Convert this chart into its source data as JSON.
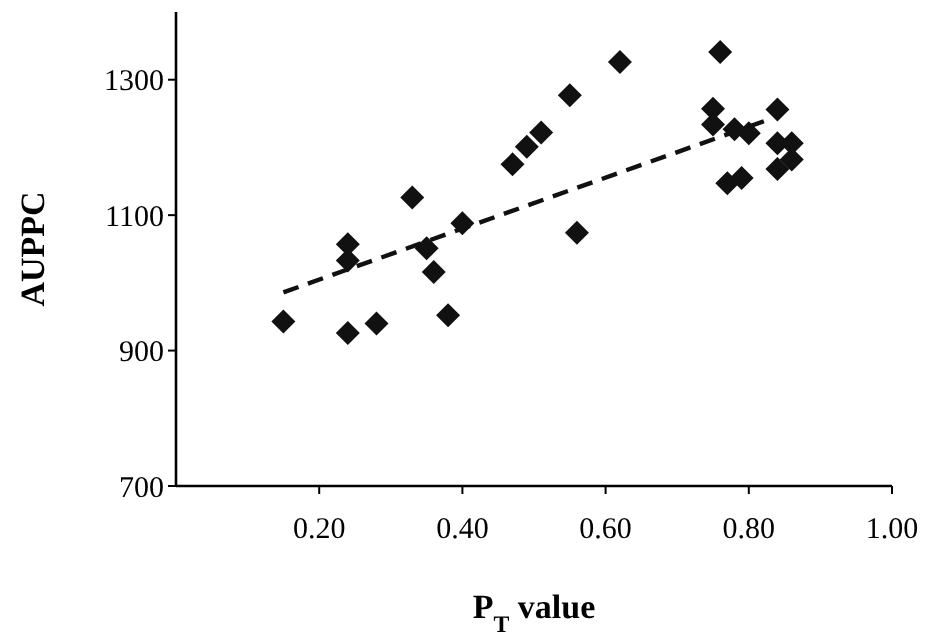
{
  "chart_data": {
    "type": "scatter",
    "xlabel": "P$_{T}$ value",
    "ylabel": "AUPPC",
    "xlim": [
      0,
      1
    ],
    "ylim": [
      700,
      1400
    ],
    "xticks": [
      {
        "value": 0.2,
        "label": "0.20"
      },
      {
        "value": 0.4,
        "label": "0.40"
      },
      {
        "value": 0.6,
        "label": "0.60"
      },
      {
        "value": 0.8,
        "label": "0.80"
      },
      {
        "value": 1,
        "label": "1.00"
      }
    ],
    "yticks": [
      700,
      900,
      1100,
      1300
    ],
    "grid": false,
    "series": [
      {
        "color": "#111111",
        "marker": "diamond",
        "x": [
          0.15,
          0.24,
          0.24,
          0.24,
          0.28,
          0.33,
          0.35,
          0.36,
          0.38,
          0.4,
          0.47,
          0.49,
          0.51,
          0.55,
          0.56,
          0.62,
          0.76,
          0.75,
          0.75,
          0.78,
          0.8,
          0.77,
          0.79,
          0.84,
          0.84,
          0.86,
          0.86,
          0.84
        ],
        "values": [
          943,
          1057,
          1033,
          926,
          940,
          1126,
          1051,
          1016,
          952,
          1088,
          1175,
          1201,
          1222,
          1277,
          1074,
          1326,
          1341,
          1257,
          1234,
          1227,
          1221,
          1147,
          1155,
          1256,
          1206,
          1206,
          1182,
          1168
        ]
      },
      {
        "type": "line",
        "color": "#111111",
        "line_style": "dashed",
        "marker": "none",
        "x": [
          0.15,
          0.83
        ],
        "values": [
          986,
          1242
        ]
      }
    ]
  }
}
